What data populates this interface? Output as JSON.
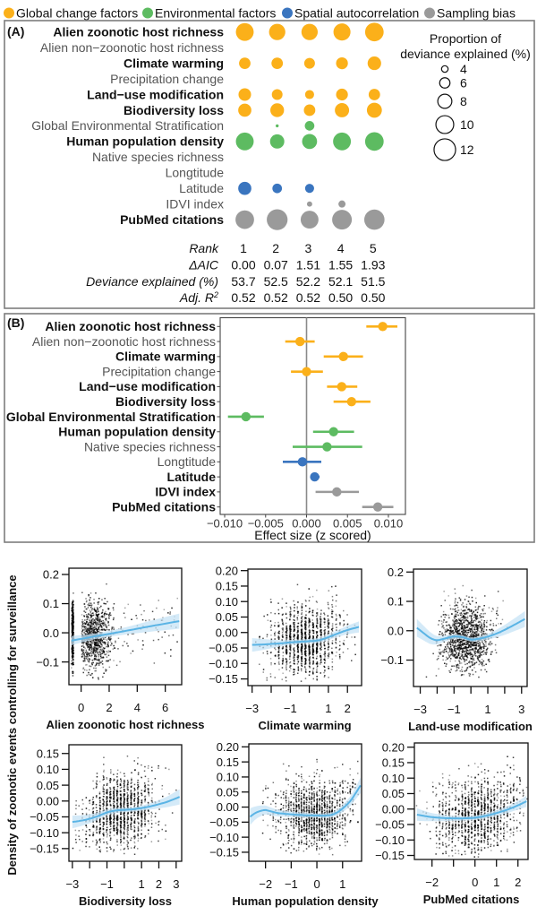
{
  "colors": {
    "global_change": "#FBB01A",
    "environmental": "#5DBB61",
    "spatial": "#3A75BF",
    "sampling": "#9A9A9A",
    "trend_line": "#5AB4E5",
    "ci_band": "#C6E3F6",
    "points": "#000000"
  },
  "legend": {
    "items": [
      {
        "label": "Global change factors",
        "category": "global_change"
      },
      {
        "label": "Environmental factors",
        "category": "environmental"
      },
      {
        "label": "Spatial autocorrelation",
        "category": "spatial"
      },
      {
        "label": "Sampling bias",
        "category": "sampling"
      }
    ]
  },
  "partial_effects": {
    "ylabel": "Density of zoonotic events controlling for surveillance"
  },
  "chart_data": [
    {
      "panel_label": "(A)",
      "type": "scatter",
      "variant": "bubble-matrix",
      "size_variable": "Proportion of deviance explained (%)",
      "columns": [
        "1",
        "2",
        "3",
        "4",
        "5"
      ],
      "rows": [
        {
          "label": "Alien zoonotic host richness",
          "category": "global_change",
          "bold": true,
          "values": [
            10.0,
            9.2,
            9.2,
            9.6,
            10.4
          ]
        },
        {
          "label": "Alien non−zoonotic host richness",
          "category": "global_change",
          "bold": false,
          "values": [
            null,
            null,
            null,
            null,
            null
          ]
        },
        {
          "label": "Climate warming",
          "category": "global_change",
          "bold": true,
          "values": [
            6.6,
            6.6,
            6.2,
            6.8,
            7.7
          ]
        },
        {
          "label": "Precipitation change",
          "category": "global_change",
          "bold": false,
          "values": [
            null,
            null,
            null,
            null,
            null
          ]
        },
        {
          "label": "Land−use modification",
          "category": "global_change",
          "bold": true,
          "values": [
            7.2,
            6.2,
            5.3,
            6.8,
            6.6
          ]
        },
        {
          "label": "Biodiversity loss",
          "category": "global_change",
          "bold": true,
          "values": [
            7.5,
            7.8,
            6.6,
            8.1,
            8.5
          ]
        },
        {
          "label": "Global Environmental Stratification",
          "category": "environmental",
          "bold": false,
          "values": [
            null,
            2.1,
            5.6,
            null,
            null
          ]
        },
        {
          "label": "Human population density",
          "category": "environmental",
          "bold": true,
          "values": [
            10.0,
            8.1,
            8.5,
            10.0,
            10.4
          ]
        },
        {
          "label": "Native species richness",
          "category": "environmental",
          "bold": false,
          "values": [
            null,
            null,
            null,
            null,
            null
          ]
        },
        {
          "label": "Longtitude",
          "category": "spatial",
          "bold": false,
          "values": [
            null,
            null,
            null,
            null,
            null
          ]
        },
        {
          "label": "Latitude",
          "category": "spatial",
          "bold": false,
          "values": [
            7.5,
            5.6,
            5.3,
            null,
            null
          ]
        },
        {
          "label": "IDVI index",
          "category": "sampling",
          "bold": false,
          "values": [
            null,
            null,
            3.3,
            4.3,
            null
          ]
        },
        {
          "label": "PubMed citations",
          "category": "sampling",
          "bold": true,
          "values": [
            10.4,
            11.6,
            10.0,
            11.0,
            11.3
          ]
        }
      ],
      "size_legend": {
        "title": [
          "Proportion of",
          "deviance explained (%)"
        ],
        "values": [
          4,
          6,
          8,
          10,
          12
        ],
        "labels": [
          "4",
          "6",
          "8",
          "10",
          "12"
        ]
      },
      "table": [
        {
          "label": "Rank",
          "values": [
            "1",
            "2",
            "3",
            "4",
            "5"
          ]
        },
        {
          "label": "ΔAIC",
          "values": [
            "0.00",
            "0.07",
            "1.51",
            "1.55",
            "1.93"
          ]
        },
        {
          "label": "Deviance explained (%)",
          "values": [
            "53.7",
            "52.5",
            "52.2",
            "52.1",
            "51.5"
          ]
        },
        {
          "label": "Adj. R",
          "label_sup": "2",
          "values": [
            "0.52",
            "0.52",
            "0.52",
            "0.50",
            "0.50"
          ]
        }
      ]
    },
    {
      "panel_label": "(B)",
      "type": "scatter",
      "variant": "coefficient-plot",
      "xlabel": "Effect size (z scored)",
      "xlim": [
        -0.01055,
        0.01208
      ],
      "xticks": [
        -0.01,
        -0.005,
        0.0,
        0.005,
        0.01
      ],
      "xtick_labels": [
        "−0.010",
        "−0.005",
        "0.000",
        "0.005",
        "0.010"
      ],
      "reference_line": 0.0,
      "grid": false,
      "rows": [
        {
          "label": "Alien zoonotic host richness",
          "category": "global_change",
          "bold": true,
          "estimate": 0.0093,
          "lower": 0.0073,
          "upper": 0.0111
        },
        {
          "label": "Alien non−zoonotic host richness",
          "category": "global_change",
          "bold": false,
          "estimate": -0.0008,
          "lower": -0.0026,
          "upper": 0.001
        },
        {
          "label": "Climate warming",
          "category": "global_change",
          "bold": true,
          "estimate": 0.0045,
          "lower": 0.0021,
          "upper": 0.0069
        },
        {
          "label": "Precipitation change",
          "category": "global_change",
          "bold": false,
          "estimate": 0.0,
          "lower": -0.0019,
          "upper": 0.002
        },
        {
          "label": "Land−use modification",
          "category": "global_change",
          "bold": true,
          "estimate": 0.0043,
          "lower": 0.0025,
          "upper": 0.0062
        },
        {
          "label": "Biodiversity loss",
          "category": "global_change",
          "bold": true,
          "estimate": 0.0055,
          "lower": 0.0033,
          "upper": 0.0078
        },
        {
          "label": "Global Environmental Stratification",
          "category": "environmental",
          "bold": true,
          "estimate": -0.0074,
          "lower": -0.0096,
          "upper": -0.0052
        },
        {
          "label": "Human population density",
          "category": "environmental",
          "bold": true,
          "estimate": 0.0033,
          "lower": 0.0008,
          "upper": 0.0058
        },
        {
          "label": "Native species richness",
          "category": "environmental",
          "bold": false,
          "estimate": 0.0025,
          "lower": -0.0017,
          "upper": 0.0068
        },
        {
          "label": "Longtitude",
          "category": "spatial",
          "bold": false,
          "estimate": -0.0005,
          "lower": -0.0029,
          "upper": 0.0018
        },
        {
          "label": "Latitude",
          "category": "spatial",
          "bold": true,
          "estimate": 0.001,
          "lower": 0.0005,
          "upper": 0.0016
        },
        {
          "label": "IDVI index",
          "category": "sampling",
          "bold": true,
          "estimate": 0.0037,
          "lower": 0.0011,
          "upper": 0.0064
        },
        {
          "label": "PubMed citations",
          "category": "sampling",
          "bold": true,
          "estimate": 0.0087,
          "lower": 0.0068,
          "upper": 0.0106
        }
      ]
    },
    {
      "type": "scatter",
      "xlabel": "Alien zoonotic host richness",
      "ylabel": "Density of zoonotic events controlling for surveillance",
      "xlim": [
        -0.87,
        7.17
      ],
      "ylim": [
        -0.178,
        0.2215
      ],
      "xticks": [
        0,
        2,
        4,
        6
      ],
      "xtick_labels": [
        "0",
        "2",
        "4",
        "6"
      ],
      "yticks": [
        -0.1,
        0.0,
        0.1,
        0.2
      ],
      "ytick_labels": [
        "−0.1",
        "0.0",
        "0.1",
        "0.2"
      ],
      "trend": {
        "x": [
          -0.7,
          1,
          3,
          5,
          7
        ],
        "y": [
          -0.027,
          -0.012,
          0.005,
          0.023,
          0.04
        ],
        "ci_half": [
          0.016,
          0.01,
          0.012,
          0.019,
          0.026
        ]
      },
      "point_cloud": [
        {
          "n": 450,
          "x_mean": -0.6,
          "x_sd": 0.03,
          "x_min": -0.7,
          "x_max": -0.5,
          "y_mean": -0.005,
          "y_sd": 0.055,
          "y_min": -0.165,
          "y_max": 0.16,
          "follow_trend": false
        },
        {
          "n": 900,
          "x_mean": 0.8,
          "x_sd": 0.75,
          "x_min": 0.05,
          "x_max": 5.0,
          "y_sd": 0.055,
          "y_min": -0.165,
          "y_max": 0.205,
          "follow_trend": true
        },
        {
          "n": 60,
          "x_dist": "uniform",
          "x_min": 3.0,
          "x_max": 7.0,
          "y_sd": 0.045,
          "y_min": -0.12,
          "y_max": 0.12,
          "follow_trend": true
        }
      ]
    },
    {
      "type": "scatter",
      "xlabel": "Climate warming",
      "xlim": [
        -3.22,
        2.74
      ],
      "ylim": [
        -0.1716,
        0.2049
      ],
      "xticks": [
        -3,
        -2,
        -1,
        0,
        1,
        2
      ],
      "xtick_labels": [
        "−3",
        "",
        "−1",
        "",
        "1",
        "2"
      ],
      "yticks": [
        -0.15,
        -0.1,
        -0.05,
        0.0,
        0.05,
        0.1,
        0.15,
        0.2
      ],
      "ytick_labels": [
        "−0.15",
        "−0.10",
        "−0.05",
        "0.00",
        "0.05",
        "0.10",
        "0.15",
        "0.20"
      ],
      "trend": {
        "x": [
          -3,
          -2.5,
          -2,
          -1.5,
          -1,
          -0.5,
          0,
          0.5,
          1,
          1.5,
          2,
          2.6
        ],
        "y": [
          -0.04,
          -0.039,
          -0.037,
          -0.035,
          -0.032,
          -0.03,
          -0.028,
          -0.025,
          -0.015,
          -0.003,
          0.008,
          0.018
        ],
        "ci_half": [
          0.022,
          0.018,
          0.014,
          0.01,
          0.008,
          0.007,
          0.007,
          0.008,
          0.009,
          0.011,
          0.014,
          0.018
        ]
      },
      "point_cloud": [
        {
          "n": 1300,
          "x_mean": -0.2,
          "x_sd": 0.95,
          "x_min": -3.05,
          "x_max": 2.6,
          "x_step": 0.2,
          "y_sd": 0.055,
          "y_min": -0.16,
          "y_max": 0.19,
          "follow_trend": true
        }
      ]
    },
    {
      "type": "scatter",
      "xlabel": "Land-use modification",
      "xlim": [
        -3.4,
        3.33
      ],
      "ylim": [
        -0.19,
        0.21
      ],
      "xticks": [
        -3,
        -2,
        -1,
        0,
        1,
        2,
        3
      ],
      "xtick_labels": [
        "−3",
        "",
        "−1",
        "",
        "1",
        "",
        "3"
      ],
      "yticks": [
        -0.1,
        0.0,
        0.1,
        0.2
      ],
      "ytick_labels": [
        "−0.1",
        "0.0",
        "0.1",
        "0.2"
      ],
      "trend": {
        "x": [
          -3.2,
          -2.8,
          -2.4,
          -2,
          -1.5,
          -1,
          -0.5,
          0,
          0.5,
          1,
          1.5,
          2,
          2.5,
          3.2
        ],
        "y": [
          0.01,
          -0.008,
          -0.025,
          -0.032,
          -0.026,
          -0.02,
          -0.022,
          -0.03,
          -0.027,
          -0.02,
          -0.01,
          0.003,
          0.018,
          0.04
        ],
        "ci_half": [
          0.03,
          0.025,
          0.02,
          0.014,
          0.01,
          0.008,
          0.007,
          0.007,
          0.008,
          0.01,
          0.013,
          0.017,
          0.021,
          0.027
        ]
      },
      "point_cloud": [
        {
          "n": 1300,
          "x_mean": -0.3,
          "x_sd": 0.75,
          "x_min": -3.2,
          "x_max": 3.2,
          "y_sd": 0.055,
          "y_min": -0.16,
          "y_max": 0.2,
          "follow_trend": true
        }
      ]
    },
    {
      "type": "scatter",
      "xlabel": "Biodiversity loss",
      "xlim": [
        -3.2,
        3.32
      ],
      "ylim": [
        -0.19,
        0.1775
      ],
      "xticks": [
        -3,
        -2,
        -1,
        0,
        1,
        2,
        3
      ],
      "xtick_labels": [
        "−3",
        "",
        "−1",
        "",
        "1",
        "2",
        "3"
      ],
      "yticks": [
        -0.15,
        -0.1,
        -0.05,
        0.0,
        0.05,
        0.1,
        0.15
      ],
      "ytick_labels": [
        "−0.15",
        "−0.10",
        "−0.05",
        "0.00",
        "0.05",
        "0.10",
        "0.15"
      ],
      "trend": {
        "x": [
          -3,
          -2.5,
          -2,
          -1.5,
          -1,
          -0.5,
          0,
          0.5,
          1,
          1.5,
          2,
          2.5,
          3.2
        ],
        "y": [
          -0.066,
          -0.062,
          -0.056,
          -0.047,
          -0.036,
          -0.03,
          -0.028,
          -0.026,
          -0.022,
          -0.017,
          -0.01,
          -0.002,
          0.013
        ],
        "ci_half": [
          0.02,
          0.017,
          0.014,
          0.011,
          0.009,
          0.008,
          0.007,
          0.007,
          0.008,
          0.01,
          0.013,
          0.017,
          0.024
        ]
      },
      "point_cloud": [
        {
          "n": 1300,
          "x_mean": -0.2,
          "x_sd": 1.0,
          "x_min": -3.05,
          "x_max": 3.1,
          "x_step": 0.2,
          "y_sd": 0.055,
          "y_min": -0.175,
          "y_max": 0.165,
          "follow_trend": true
        }
      ]
    },
    {
      "type": "scatter",
      "xlabel": "Human population density",
      "xlim": [
        -2.65,
        1.74
      ],
      "ylim": [
        -0.18,
        0.21
      ],
      "xticks": [
        -2,
        -1,
        0,
        1
      ],
      "xtick_labels": [
        "−2",
        "−1",
        "0",
        "1"
      ],
      "yticks": [
        -0.15,
        -0.1,
        -0.05,
        0.0,
        0.05,
        0.1,
        0.15,
        0.2
      ],
      "ytick_labels": [
        "−0.15",
        "−0.10",
        "−0.05",
        "0.00",
        "0.05",
        "0.10",
        "0.15",
        "0.20"
      ],
      "trend": {
        "x": [
          -2.6,
          -2.4,
          -2.2,
          -2,
          -1.8,
          -1.5,
          -1,
          -0.5,
          0,
          0.4,
          0.7,
          1,
          1.3,
          1.5,
          1.7
        ],
        "y": [
          -0.032,
          -0.02,
          -0.013,
          -0.01,
          -0.014,
          -0.02,
          -0.024,
          -0.027,
          -0.028,
          -0.028,
          -0.022,
          -0.005,
          0.02,
          0.045,
          0.072
        ],
        "ci_half": [
          0.028,
          0.022,
          0.018,
          0.015,
          0.013,
          0.011,
          0.009,
          0.008,
          0.007,
          0.008,
          0.009,
          0.012,
          0.016,
          0.02,
          0.026
        ]
      },
      "point_cloud": [
        {
          "n": 1300,
          "x_mean": -0.1,
          "x_sd": 0.75,
          "x_min": -2.55,
          "x_max": 1.65,
          "x_step": 0.1,
          "y_sd": 0.055,
          "y_min": -0.16,
          "y_max": 0.19,
          "follow_trend": true
        }
      ]
    },
    {
      "type": "scatter",
      "xlabel": "PubMed citations",
      "xlim": [
        -2.82,
        2.47
      ],
      "ylim": [
        -0.163,
        0.2136
      ],
      "xticks": [
        -2,
        -1,
        0,
        1,
        2
      ],
      "xtick_labels": [
        "−2",
        "",
        "0",
        "1",
        "2"
      ],
      "yticks": [
        -0.15,
        -0.1,
        -0.05,
        0.0,
        0.05,
        0.1,
        0.15,
        0.2
      ],
      "ytick_labels": [
        "−0.15",
        "−0.10",
        "−0.05",
        "0.00",
        "0.05",
        "0.10",
        "0.15",
        "0.20"
      ],
      "trend": {
        "x": [
          -2.7,
          -2.3,
          -2,
          -1.5,
          -1,
          -0.5,
          0,
          0.5,
          1,
          1.5,
          2,
          2.4
        ],
        "y": [
          -0.018,
          -0.023,
          -0.026,
          -0.029,
          -0.03,
          -0.03,
          -0.028,
          -0.022,
          -0.013,
          -0.002,
          0.012,
          0.025
        ],
        "ci_half": [
          0.02,
          0.016,
          0.013,
          0.01,
          0.008,
          0.007,
          0.007,
          0.008,
          0.009,
          0.011,
          0.014,
          0.018
        ]
      },
      "point_cloud": [
        {
          "n": 1300,
          "x_mean": 0.1,
          "x_sd": 1.0,
          "x_min": -2.75,
          "x_max": 2.45,
          "x_step": 0.15,
          "y_sd": 0.06,
          "y_min": -0.155,
          "y_max": 0.2,
          "follow_trend": true
        }
      ]
    }
  ]
}
